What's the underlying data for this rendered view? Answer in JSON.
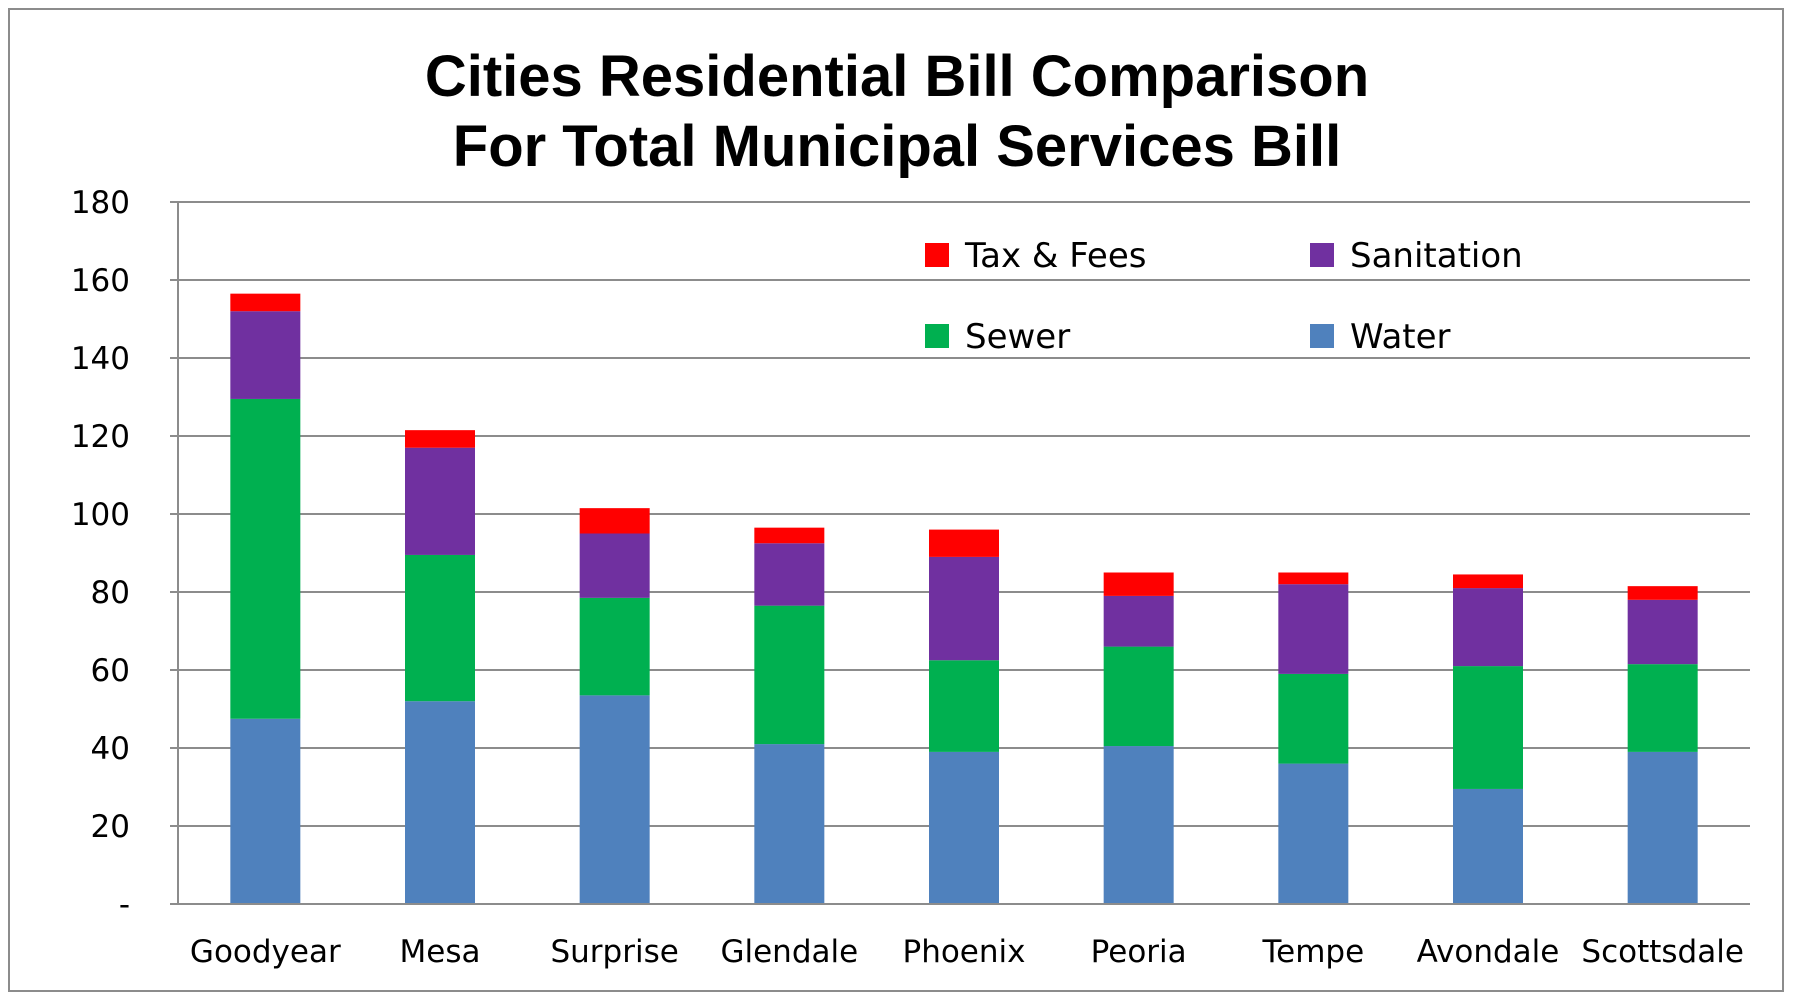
{
  "chart_data": {
    "type": "bar",
    "stacked": true,
    "title": "Cities Residential Bill Comparison",
    "subtitle": "For Total Municipal Services Bill",
    "xlabel": "",
    "ylabel": "",
    "ylim": [
      0,
      180
    ],
    "y_ticks": [
      {
        "value": 0,
        "label": "-"
      },
      {
        "value": 20,
        "label": "20"
      },
      {
        "value": 40,
        "label": "40"
      },
      {
        "value": 60,
        "label": "60"
      },
      {
        "value": 80,
        "label": "80"
      },
      {
        "value": 100,
        "label": "100"
      },
      {
        "value": 120,
        "label": "120"
      },
      {
        "value": 140,
        "label": "140"
      },
      {
        "value": 160,
        "label": "160"
      },
      {
        "value": 180,
        "label": "180"
      }
    ],
    "grid": true,
    "legend_position": "top-right",
    "categories": [
      "Goodyear",
      "Mesa",
      "Surprise",
      "Glendale",
      "Phoenix",
      "Peoria",
      "Tempe",
      "Avondale",
      "Scottsdale"
    ],
    "series": [
      {
        "name": "Water",
        "color": "#4f81bd",
        "values": [
          47.5,
          52,
          53.5,
          41,
          39,
          40.5,
          36,
          29.5,
          39
        ]
      },
      {
        "name": "Sewer",
        "color": "#00b050",
        "values": [
          82,
          37.5,
          25,
          35.5,
          23.5,
          25.5,
          23,
          31.5,
          22.5
        ]
      },
      {
        "name": "Sanitation",
        "color": "#7030a0",
        "values": [
          22.5,
          27.5,
          16.5,
          16,
          26.5,
          13,
          23,
          20,
          16.5
        ]
      },
      {
        "name": "Tax & Fees",
        "color": "#ff0000",
        "values": [
          4.5,
          4.5,
          6.5,
          4,
          7,
          6,
          3,
          3.5,
          3.5
        ]
      }
    ],
    "legend_order": [
      "Tax & Fees",
      "Sanitation",
      "Sewer",
      "Water"
    ]
  }
}
